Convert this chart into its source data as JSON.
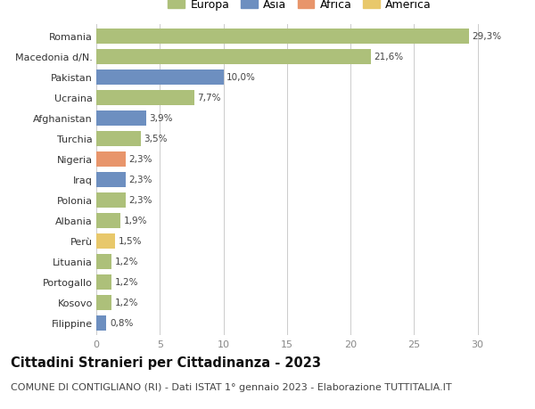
{
  "countries": [
    "Romania",
    "Macedonia d/N.",
    "Pakistan",
    "Ucraina",
    "Afghanistan",
    "Turchia",
    "Nigeria",
    "Iraq",
    "Polonia",
    "Albania",
    "Perù",
    "Lituania",
    "Portogallo",
    "Kosovo",
    "Filippine"
  ],
  "values": [
    29.3,
    21.6,
    10.0,
    7.7,
    3.9,
    3.5,
    2.3,
    2.3,
    2.3,
    1.9,
    1.5,
    1.2,
    1.2,
    1.2,
    0.8
  ],
  "labels": [
    "29,3%",
    "21,6%",
    "10,0%",
    "7,7%",
    "3,9%",
    "3,5%",
    "2,3%",
    "2,3%",
    "2,3%",
    "1,9%",
    "1,5%",
    "1,2%",
    "1,2%",
    "1,2%",
    "0,8%"
  ],
  "continents": [
    "Europa",
    "Europa",
    "Asia",
    "Europa",
    "Asia",
    "Europa",
    "Africa",
    "Asia",
    "Europa",
    "Europa",
    "America",
    "Europa",
    "Europa",
    "Europa",
    "Asia"
  ],
  "colors": {
    "Europa": "#adc07a",
    "Asia": "#6d8fc0",
    "Africa": "#e8956b",
    "America": "#e8c86b"
  },
  "legend_order": [
    "Europa",
    "Asia",
    "Africa",
    "America"
  ],
  "title": "Cittadini Stranieri per Cittadinanza - 2023",
  "subtitle": "COMUNE DI CONTIGLIANO (RI) - Dati ISTAT 1° gennaio 2023 - Elaborazione TUTTITALIA.IT",
  "xlim": [
    0,
    32
  ],
  "xticks": [
    0,
    5,
    10,
    15,
    20,
    25,
    30
  ],
  "background_color": "#ffffff",
  "grid_color": "#cccccc",
  "bar_height": 0.75,
  "title_fontsize": 10.5,
  "subtitle_fontsize": 8,
  "label_fontsize": 7.5,
  "tick_fontsize": 8,
  "legend_fontsize": 9
}
